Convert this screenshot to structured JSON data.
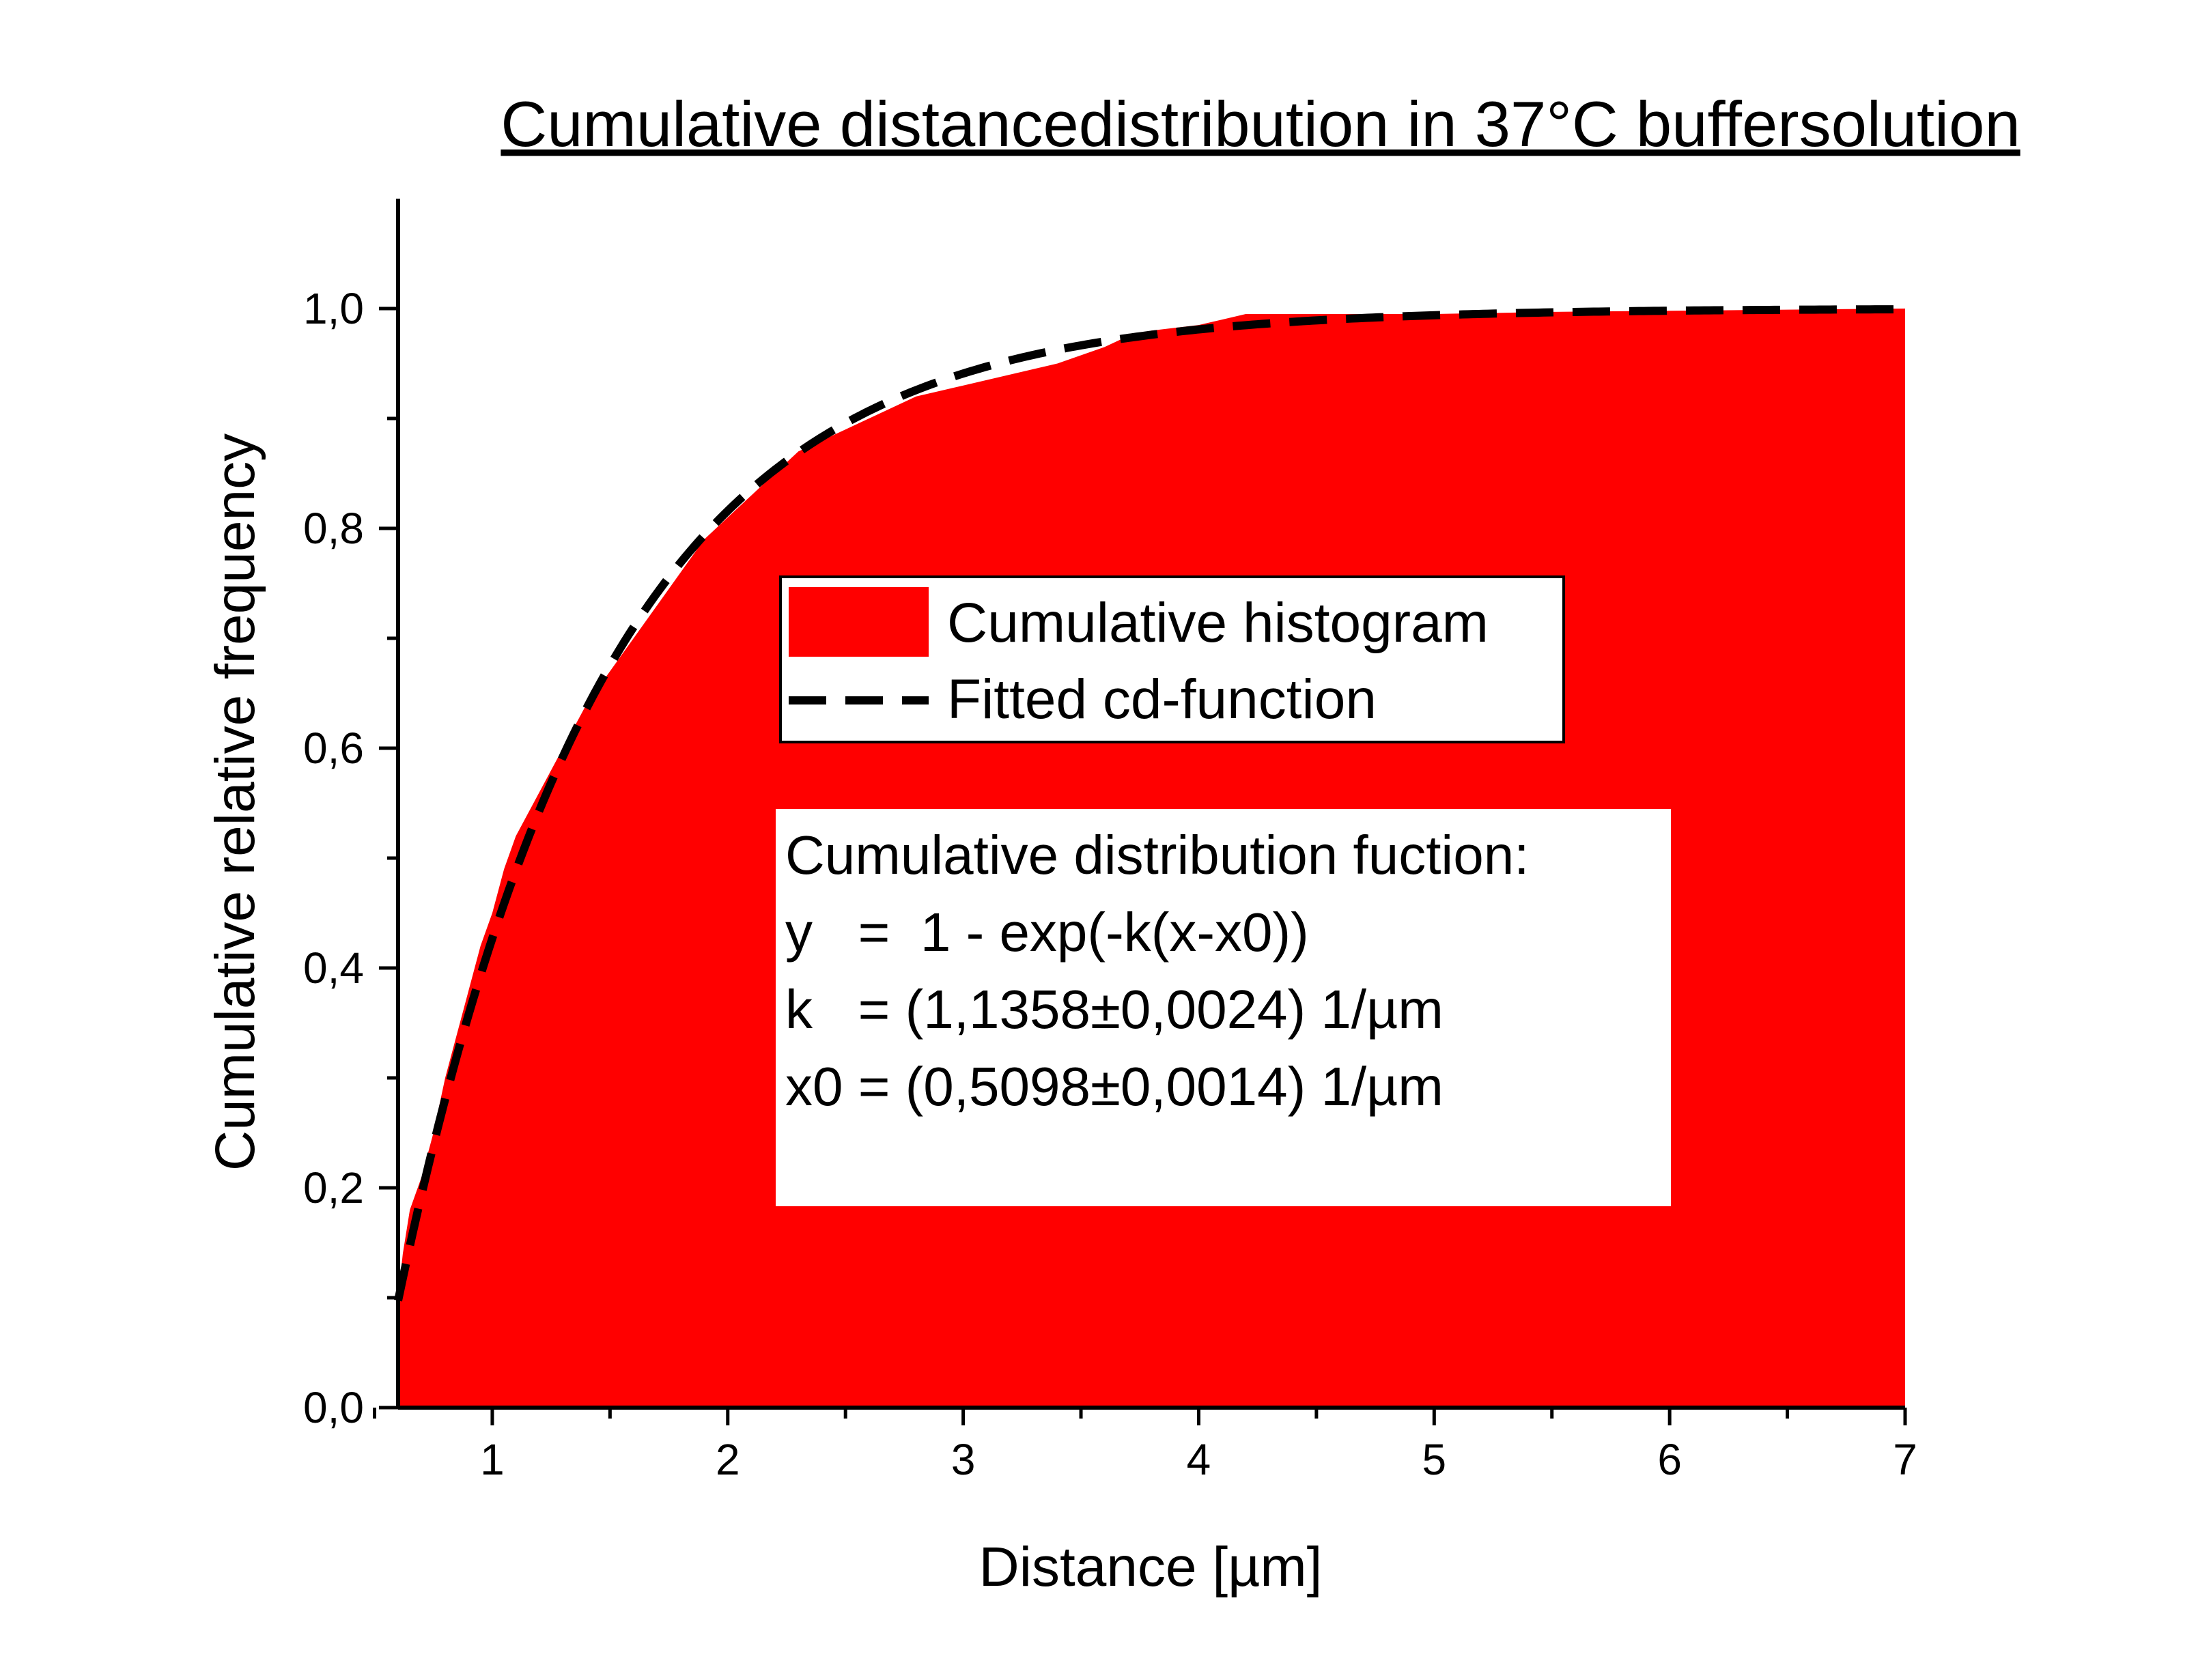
{
  "chart_data": {
    "type": "area",
    "title": "Cumulative distancedistribution in 37°C buffersolution",
    "xlabel": "Distance [µm]",
    "ylabel": "Cumulative relative frequency",
    "xlim": [
      0.6,
      7.0
    ],
    "ylim": [
      0.0,
      1.1
    ],
    "xticks": [
      {
        "value": 1,
        "label": "1"
      },
      {
        "value": 2,
        "label": "2"
      },
      {
        "value": 3,
        "label": "3"
      },
      {
        "value": 4,
        "label": "4"
      },
      {
        "value": 5,
        "label": "5"
      },
      {
        "value": 6,
        "label": "6"
      },
      {
        "value": 7,
        "label": "7"
      }
    ],
    "yticks": [
      {
        "value": 0.0,
        "label": "0,0"
      },
      {
        "value": 0.2,
        "label": "0,2"
      },
      {
        "value": 0.4,
        "label": "0,4"
      },
      {
        "value": 0.6,
        "label": "0,6"
      },
      {
        "value": 0.8,
        "label": "0,8"
      },
      {
        "value": 1.0,
        "label": "1,0"
      }
    ],
    "x_minor_ticks": [
      0.5,
      1.5,
      2.5,
      3.5,
      4.5,
      5.5,
      6.5
    ],
    "y_minor_ticks": [
      0.1,
      0.3,
      0.5,
      0.7,
      0.9
    ],
    "grid": false,
    "legend_position": "center",
    "colors": {
      "histogram": "#ff0000",
      "fit": "#000000"
    },
    "series": [
      {
        "name": "Cumulative histogram",
        "style": "filled-area",
        "x": [
          0.6,
          0.62,
          0.65,
          0.7,
          0.75,
          0.8,
          0.85,
          0.9,
          0.95,
          1.0,
          1.05,
          1.1,
          1.2,
          1.3,
          1.4,
          1.5,
          1.6,
          1.7,
          1.8,
          1.9,
          2.0,
          2.1,
          2.2,
          2.3,
          2.4,
          2.5,
          2.6,
          2.7,
          2.8,
          2.9,
          3.0,
          3.2,
          3.4,
          3.6,
          3.7,
          3.8,
          4.0,
          4.1,
          4.2,
          4.5,
          5.0,
          5.5,
          6.0,
          6.5,
          7.0
        ],
        "y": [
          0.1,
          0.14,
          0.18,
          0.21,
          0.25,
          0.3,
          0.34,
          0.38,
          0.42,
          0.45,
          0.49,
          0.52,
          0.56,
          0.6,
          0.64,
          0.67,
          0.7,
          0.73,
          0.76,
          0.79,
          0.81,
          0.83,
          0.85,
          0.87,
          0.88,
          0.89,
          0.9,
          0.91,
          0.92,
          0.925,
          0.93,
          0.94,
          0.95,
          0.965,
          0.975,
          0.98,
          0.985,
          0.99,
          0.995,
          0.995,
          0.995,
          0.997,
          0.998,
          0.999,
          1.0
        ]
      },
      {
        "name": "Fitted cd-function",
        "style": "dashed-line",
        "function": "1 - exp(-k(x-x0))",
        "k": 1.1358,
        "x0": 0.5098,
        "x_range": [
          0.6,
          7.0
        ]
      }
    ],
    "legend": [
      {
        "label": "Cumulative histogram",
        "marker": "red-box"
      },
      {
        "label": "Fitted cd-function",
        "marker": "dashed-line"
      }
    ],
    "annotation": {
      "lines": [
        "Cumulative distribution fuction:",
        "y   =  1 - exp(-k(x-x0))",
        "k   = (1,1358±0,0024) 1/µm",
        "x0 = (0,5098±0,0014) 1/µm"
      ]
    }
  }
}
